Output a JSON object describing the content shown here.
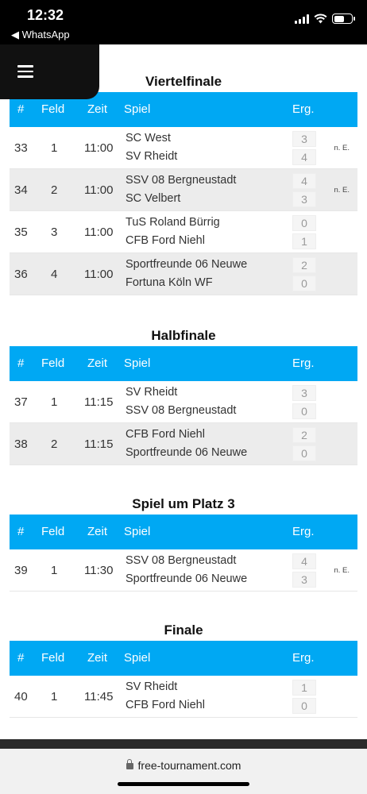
{
  "status_bar": {
    "time": "12:32",
    "back_label": "◀ WhatsApp"
  },
  "colors": {
    "header_bg": "#00a8f3",
    "alt_row_bg": "#ececec"
  },
  "table_headers": {
    "nr": "#",
    "feld": "Feld",
    "zeit": "Zeit",
    "spiel": "Spiel",
    "erg": "Erg."
  },
  "sections": [
    {
      "title": "Viertelfinale",
      "matches": [
        {
          "nr": "33",
          "feld": "1",
          "zeit": "11:00",
          "team1": "SC West",
          "team2": "SV Rheidt",
          "score1": "3",
          "score2": "4",
          "note": "n. E."
        },
        {
          "nr": "34",
          "feld": "2",
          "zeit": "11:00",
          "team1": "SSV 08 Bergneustadt",
          "team2": "SC Velbert",
          "score1": "4",
          "score2": "3",
          "note": "n. E."
        },
        {
          "nr": "35",
          "feld": "3",
          "zeit": "11:00",
          "team1": "TuS Roland Bürrig",
          "team2": "CFB Ford Niehl",
          "score1": "0",
          "score2": "1",
          "note": ""
        },
        {
          "nr": "36",
          "feld": "4",
          "zeit": "11:00",
          "team1": "Sportfreunde 06 Neuwe",
          "team2": "Fortuna Köln WF",
          "score1": "2",
          "score2": "0",
          "note": ""
        }
      ]
    },
    {
      "title": "Halbfinale",
      "matches": [
        {
          "nr": "37",
          "feld": "1",
          "zeit": "11:15",
          "team1": "SV Rheidt",
          "team2": "SSV 08 Bergneustadt",
          "score1": "3",
          "score2": "0",
          "note": ""
        },
        {
          "nr": "38",
          "feld": "2",
          "zeit": "11:15",
          "team1": "CFB Ford Niehl",
          "team2": "Sportfreunde 06 Neuwe",
          "score1": "2",
          "score2": "0",
          "note": ""
        }
      ]
    },
    {
      "title": "Spiel um Platz 3",
      "matches": [
        {
          "nr": "39",
          "feld": "1",
          "zeit": "11:30",
          "team1": "SSV 08 Bergneustadt",
          "team2": "Sportfreunde 06 Neuwe",
          "score1": "4",
          "score2": "3",
          "note": "n. E."
        }
      ]
    },
    {
      "title": "Finale",
      "matches": [
        {
          "nr": "40",
          "feld": "1",
          "zeit": "11:45",
          "team1": "SV Rheidt",
          "team2": "CFB Ford Niehl",
          "score1": "1",
          "score2": "0",
          "note": ""
        }
      ]
    }
  ],
  "url_bar": {
    "url": "free-tournament.com"
  }
}
